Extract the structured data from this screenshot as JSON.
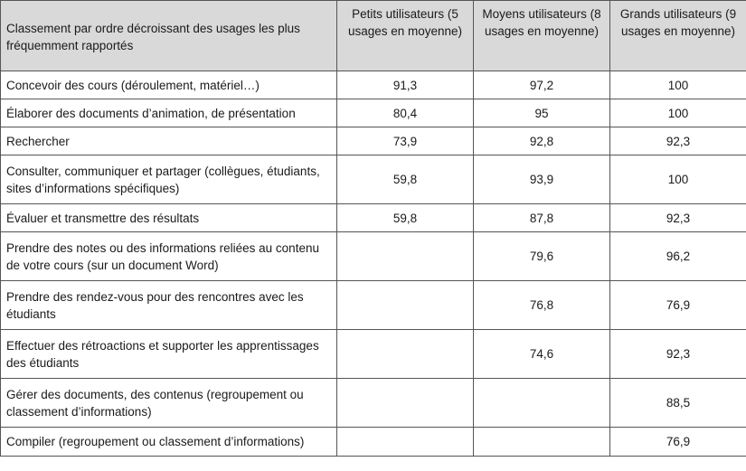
{
  "table": {
    "headers": [
      "Classement par ordre décroissant des usages les plus fréquemment rapportés",
      "Petits utilisateurs (5 usages en moyenne)",
      "Moyens utilisateurs (8 usages en moyenne)",
      "Grands utilisateurs (9 usages en moyenne)"
    ],
    "rows": [
      [
        "Concevoir des cours (déroulement, matériel…)",
        "91,3",
        "97,2",
        "100"
      ],
      [
        "Élaborer des documents d’animation, de présentation",
        "80,4",
        "95",
        "100"
      ],
      [
        "Rechercher",
        "73,9",
        "92,8",
        "92,3"
      ],
      [
        "Consulter, communiquer et partager (collègues, étudiants, sites d’informations spécifiques)",
        "59,8",
        "93,9",
        "100"
      ],
      [
        "Évaluer et transmettre des résultats",
        "59,8",
        "87,8",
        "92,3"
      ],
      [
        "Prendre des notes ou des informations reliées au contenu de votre cours (sur un document Word)",
        "",
        "79,6",
        "96,2"
      ],
      [
        "Prendre des rendez-vous pour des rencontres avec les étudiants",
        "",
        "76,8",
        "76,9"
      ],
      [
        "Effectuer des rétroactions et supporter les apprentissages des étudiants",
        "",
        "74,6",
        "92,3"
      ],
      [
        "Gérer des documents, des contenus (regroupement ou classement d’informations)",
        "",
        "",
        "88,5"
      ],
      [
        "Compiler (regroupement ou classement d’informations)",
        "",
        "",
        "76,9"
      ]
    ]
  }
}
